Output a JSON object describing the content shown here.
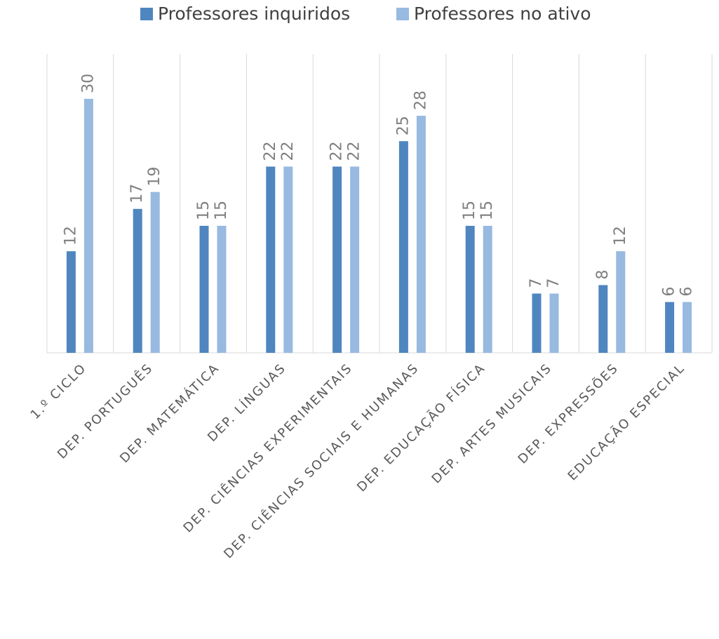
{
  "chart_data": {
    "type": "bar",
    "categories": [
      "1.º CICLO",
      "DEP. PORTUGUÊS",
      "DEP. MATEMÁTICA",
      "DEP. LÍNGUAS",
      "DEP. CIÊNCIAS EXPERIMENTAIS",
      "DEP. CIÊNCIAS SOCIAIS E HUMANAS",
      "DEP. EDUCAÇÃO FÍSICA",
      "DEP. ARTES MUSICAIS",
      "DEP. EXPRESSÕES",
      "EDUCAÇÃO ESPECIAL"
    ],
    "series": [
      {
        "name": "Professores inquiridos",
        "color": "#4f86bf",
        "values": [
          12,
          17,
          15,
          22,
          22,
          25,
          15,
          7,
          8,
          6
        ]
      },
      {
        "name": "Professores no ativo",
        "color": "#98b9e0",
        "values": [
          30,
          19,
          15,
          22,
          22,
          28,
          15,
          7,
          12,
          6
        ]
      }
    ],
    "legend": "top"
  }
}
